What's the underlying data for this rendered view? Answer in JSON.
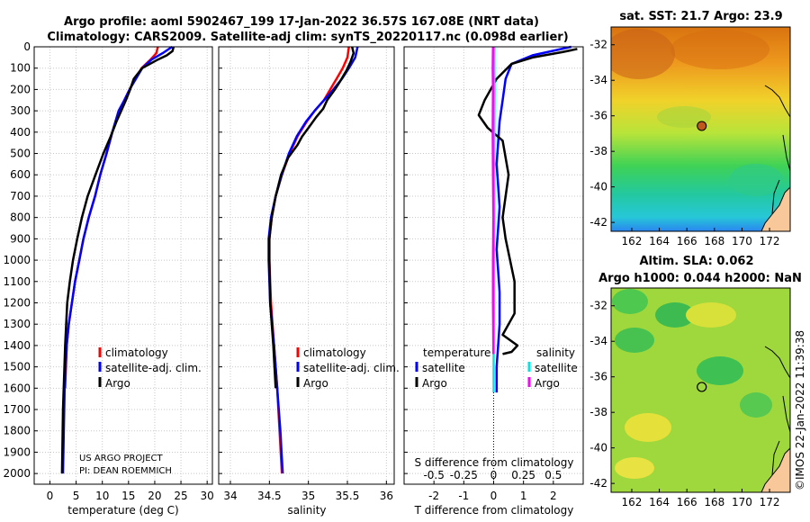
{
  "header": {
    "line1": "Argo profile: aoml 5902467_199 17-Jan-2022 36.57S 167.08E (NRT data)",
    "line2": "Climatology: CARS2009. Satellite-adj clim: synTS_20220117.nc (0.098d earlier)"
  },
  "colors": {
    "climatology": "#ff0000",
    "satellite": "#0000ff",
    "argo": "#000000",
    "sat_salinity": "#00e5e5",
    "argo_salinity": "#ff00ff",
    "grid": "#c8c8c8",
    "land": "#f9c89a"
  },
  "chart_data": [
    {
      "type": "line",
      "id": "temperature",
      "xlabel": "temperature (deg C)",
      "xlim": [
        -3,
        31
      ],
      "xticks": [
        0,
        5,
        10,
        15,
        20,
        25,
        30
      ],
      "ylim": [
        0,
        2050
      ],
      "yticks": [
        0,
        100,
        200,
        300,
        400,
        500,
        600,
        700,
        800,
        900,
        1000,
        1100,
        1200,
        1300,
        1400,
        1500,
        1600,
        1700,
        1800,
        1900,
        2000
      ],
      "legend": [
        "climatology",
        "satellite-adj. clim.",
        "Argo"
      ],
      "legend_position": "center-right",
      "annotation": [
        "US ARGO PROJECT",
        "PI: DEAN ROEMMICH"
      ],
      "series": [
        {
          "name": "climatology",
          "color": "#ff0000",
          "x": [
            20.6,
            20.3,
            19.2,
            17.5,
            16.3,
            15.2,
            14.2,
            13.2,
            11.9,
            10.8,
            9.6,
            8.6,
            7.4,
            6.4,
            5.6,
            4.8,
            4.2,
            3.6,
            3.2,
            2.9
          ],
          "y": [
            0,
            30,
            60,
            100,
            150,
            200,
            250,
            300,
            400,
            500,
            600,
            700,
            800,
            900,
            1000,
            1100,
            1200,
            1300,
            1400,
            1600
          ]
        },
        {
          "name": "satellite-adj. clim.",
          "color": "#0000ff",
          "x": [
            23.3,
            21.5,
            19.4,
            17.6,
            16.4,
            15.2,
            14.2,
            13.1,
            11.9,
            10.8,
            9.6,
            8.6,
            7.4,
            6.4,
            5.6,
            4.8,
            4.2,
            3.6,
            3.2,
            2.8,
            2.5
          ],
          "y": [
            0,
            30,
            60,
            100,
            150,
            200,
            250,
            300,
            400,
            500,
            600,
            700,
            800,
            900,
            1000,
            1100,
            1200,
            1300,
            1400,
            1600,
            2000
          ]
        },
        {
          "name": "Argo",
          "color": "#000000",
          "x": [
            23.6,
            23.4,
            22.3,
            20.6,
            17.6,
            16.0,
            15.3,
            14.5,
            13.6,
            12.7,
            11.6,
            10.2,
            8.7,
            7.2,
            6.1,
            5.2,
            4.4,
            3.8,
            3.3,
            2.9,
            2.5,
            2.3
          ],
          "y": [
            0,
            20,
            40,
            60,
            100,
            150,
            200,
            250,
            300,
            350,
            420,
            500,
            600,
            700,
            800,
            900,
            1000,
            1100,
            1200,
            1400,
            1700,
            2000
          ]
        }
      ]
    },
    {
      "type": "line",
      "id": "salinity",
      "xlabel": "salinity",
      "xlim": [
        33.85,
        36.1
      ],
      "xticks": [
        34,
        34.5,
        35,
        35.5,
        36
      ],
      "ylim": [
        0,
        2050
      ],
      "legend": [
        "climatology",
        "satellite-adj. clim.",
        "Argo"
      ],
      "legend_position": "center-right",
      "series": [
        {
          "name": "climatology",
          "color": "#ff0000",
          "x": [
            35.52,
            35.5,
            35.44,
            35.36,
            35.28,
            35.2,
            35.08,
            34.98,
            34.86,
            34.76,
            34.66,
            34.58,
            34.53,
            34.5,
            34.5,
            34.52,
            34.56,
            34.6,
            34.63,
            34.66
          ],
          "y": [
            0,
            50,
            100,
            150,
            200,
            250,
            300,
            350,
            420,
            500,
            600,
            700,
            800,
            900,
            1000,
            1200,
            1400,
            1600,
            1800,
            2000
          ]
        },
        {
          "name": "satellite-adj. clim.",
          "color": "#0000ff",
          "x": [
            35.63,
            35.6,
            35.52,
            35.43,
            35.32,
            35.2,
            35.08,
            34.97,
            34.85,
            34.75,
            34.66,
            34.58,
            34.52,
            34.49,
            34.49,
            34.51,
            34.56,
            34.6,
            34.64,
            34.67
          ],
          "y": [
            0,
            50,
            100,
            150,
            200,
            250,
            300,
            350,
            420,
            500,
            600,
            700,
            800,
            900,
            1000,
            1200,
            1400,
            1600,
            1800,
            2000
          ]
        },
        {
          "name": "Argo",
          "color": "#000000",
          "x": [
            35.56,
            35.58,
            35.54,
            35.49,
            35.41,
            35.34,
            35.24,
            35.19,
            35.1,
            35.0,
            34.92,
            34.86,
            34.74,
            34.65,
            34.58,
            34.53,
            34.5,
            34.5,
            34.51,
            34.55,
            34.58
          ],
          "y": [
            0,
            30,
            70,
            110,
            160,
            200,
            250,
            290,
            330,
            380,
            420,
            460,
            520,
            600,
            700,
            800,
            900,
            1000,
            1200,
            1400,
            1600
          ]
        }
      ]
    },
    {
      "type": "line",
      "id": "difference",
      "xlabel": "T difference from climatology",
      "xlabel2": "S difference from climatology",
      "xlim": [
        -3,
        3
      ],
      "xticks": [
        -2,
        -1,
        0,
        1,
        2
      ],
      "x2ticks": [
        "-0.5",
        "-0.25",
        "0",
        "0.25",
        "0.5"
      ],
      "ylim": [
        0,
        2050
      ],
      "legend_title_left": "temperature",
      "legend_title_right": "salinity",
      "legend_left": [
        "satellite",
        "Argo"
      ],
      "legend_right": [
        "satellite",
        "Argo"
      ],
      "series": [
        {
          "name": "temperature satellite",
          "color": "#0000ff",
          "x": [
            2.6,
            1.3,
            0.6,
            0.4,
            0.3,
            0.2,
            0.15,
            0.1,
            0.15,
            0.2,
            0.15,
            0.1,
            0.15,
            0.2,
            0.2,
            0.15,
            0.1,
            0.1
          ],
          "y": [
            0,
            40,
            80,
            150,
            250,
            350,
            450,
            550,
            650,
            750,
            850,
            950,
            1050,
            1150,
            1300,
            1400,
            1500,
            1620
          ]
        },
        {
          "name": "temperature Argo",
          "color": "#000000",
          "x": [
            2.8,
            2.3,
            1.3,
            0.6,
            0.1,
            -0.3,
            -0.5,
            -0.2,
            0.3,
            0.5,
            0.4,
            0.3,
            0.4,
            0.7,
            0.7,
            0.5,
            0.3,
            0.8,
            0.6,
            0.3
          ],
          "y": [
            10,
            25,
            50,
            80,
            150,
            250,
            320,
            380,
            440,
            600,
            700,
            800,
            900,
            1100,
            1250,
            1300,
            1350,
            1400,
            1430,
            1440
          ]
        },
        {
          "name": "salinity satellite",
          "color": "#00e5e5",
          "x": [
            0.02,
            0.02,
            0.03,
            0.02,
            0.02,
            0.02,
            0.01,
            0.01,
            0.0,
            0.0
          ],
          "y": [
            0,
            100,
            200,
            400,
            600,
            800,
            1000,
            1200,
            1400,
            1620
          ]
        },
        {
          "name": "salinity Argo",
          "color": "#ff00ff",
          "x": [
            -0.02,
            -0.03,
            -0.02,
            -0.03,
            -0.02,
            -0.01,
            -0.02,
            -0.02,
            -0.01,
            -0.01
          ],
          "y": [
            0,
            100,
            200,
            400,
            600,
            800,
            1000,
            1200,
            1400,
            1440
          ]
        }
      ]
    },
    {
      "type": "heatmap",
      "id": "sst_map",
      "title": "sat. SST: 21.7 Argo: 23.9",
      "xlim": [
        160.5,
        173.5
      ],
      "ylim": [
        -42.5,
        -31
      ],
      "xticks": [
        162,
        164,
        166,
        168,
        170,
        172
      ],
      "yticks": [
        -32,
        -34,
        -36,
        -38,
        -40,
        -42
      ],
      "marker": {
        "lon": 167.08,
        "lat": -36.57
      }
    },
    {
      "type": "heatmap",
      "id": "sla_map",
      "title": "Altim. SLA: 0.062",
      "subtitle": "Argo h1000: 0.044 h2000: NaN",
      "xlim": [
        160.5,
        173.5
      ],
      "ylim": [
        -42.5,
        -31
      ],
      "xticks": [
        162,
        164,
        166,
        168,
        170,
        172
      ],
      "yticks": [
        -32,
        -34,
        -36,
        -38,
        -40,
        -42
      ],
      "marker": {
        "lon": 167.08,
        "lat": -36.57
      }
    }
  ],
  "footer": {
    "credit": "©IMOS 22-Jan-2022 11:39:38"
  }
}
